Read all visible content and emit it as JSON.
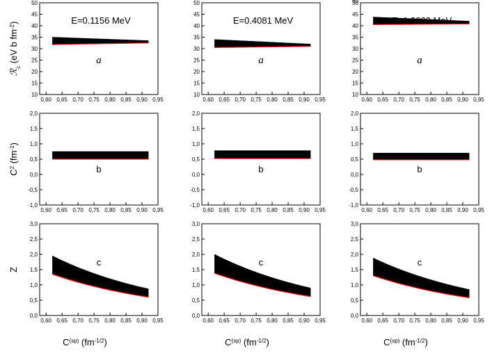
{
  "chart_data": {
    "type": "area",
    "columns": [
      {
        "title": "E=0.1156 MeV"
      },
      {
        "title": "E=0.4081 MeV"
      },
      {
        "title": "E=1.2032 MeV"
      }
    ],
    "rows": [
      {
        "ylabel": {
          "base": "ℛ",
          "sub": "c",
          "rest": " (eV b fm",
          "sup": "-2",
          "close": ")"
        },
        "ylim": [
          10,
          50
        ],
        "yticks": [
          10,
          15,
          20,
          25,
          30,
          35,
          40,
          45,
          50
        ],
        "top_partial_tick": "60",
        "letter": "a",
        "letter_italic": true
      },
      {
        "ylabel": {
          "base": "C",
          "sup": "2",
          "rest": " (fm",
          "sup2": "-1",
          "close": ")"
        },
        "ylim": [
          -1.0,
          2.0
        ],
        "yticks": [
          "-1,0",
          "-0,5",
          "0,0",
          "0,5",
          "1,0",
          "1,5",
          "2,0"
        ],
        "letter": "b",
        "letter_italic": false
      },
      {
        "ylabel": {
          "base": "Z"
        },
        "ylim": [
          0.0,
          3.0
        ],
        "yticks": [
          "0,0",
          "0,5",
          "1,0",
          "1,5",
          "2,0",
          "2,5",
          "3,0"
        ],
        "letter": "c",
        "letter_italic": false
      }
    ],
    "xlim": [
      0.58,
      0.95
    ],
    "xticks": [
      "0,60",
      "0,65",
      "0,70",
      "0,75",
      "0,80",
      "0,85",
      "0,90",
      "0,95"
    ],
    "xlabel": {
      "base": "C",
      "sup": "(sp)",
      "rest": " (fm",
      "sup2": "-1/2",
      "close": ")"
    },
    "x_range": [
      0.62,
      0.92
    ],
    "series": [
      {
        "row": 0,
        "col": 0,
        "upper": [
          35.0,
          33.5
        ],
        "lower": [
          31.8,
          32.5
        ]
      },
      {
        "row": 0,
        "col": 1,
        "upper": [
          34.0,
          32.0
        ],
        "lower": [
          30.5,
          31.0
        ]
      },
      {
        "row": 0,
        "col": 2,
        "upper": [
          43.8,
          42.0
        ],
        "lower": [
          40.5,
          40.8
        ]
      },
      {
        "row": 1,
        "col": 0,
        "upper": [
          0.75,
          0.75
        ],
        "lower": [
          0.5,
          0.5
        ]
      },
      {
        "row": 1,
        "col": 1,
        "upper": [
          0.78,
          0.78
        ],
        "lower": [
          0.52,
          0.52
        ]
      },
      {
        "row": 1,
        "col": 2,
        "upper": [
          0.7,
          0.7
        ],
        "lower": [
          0.48,
          0.48
        ]
      },
      {
        "row": 2,
        "col": 0,
        "upper": [
          1.95,
          0.87
        ],
        "lower": [
          1.35,
          0.6
        ]
      },
      {
        "row": 2,
        "col": 1,
        "upper": [
          2.0,
          0.9
        ],
        "lower": [
          1.38,
          0.62
        ]
      },
      {
        "row": 2,
        "col": 2,
        "upper": [
          1.88,
          0.85
        ],
        "lower": [
          1.3,
          0.58
        ]
      }
    ],
    "fill_color": "#000000",
    "lower_edge_color": "#ff0000",
    "grid": false
  }
}
